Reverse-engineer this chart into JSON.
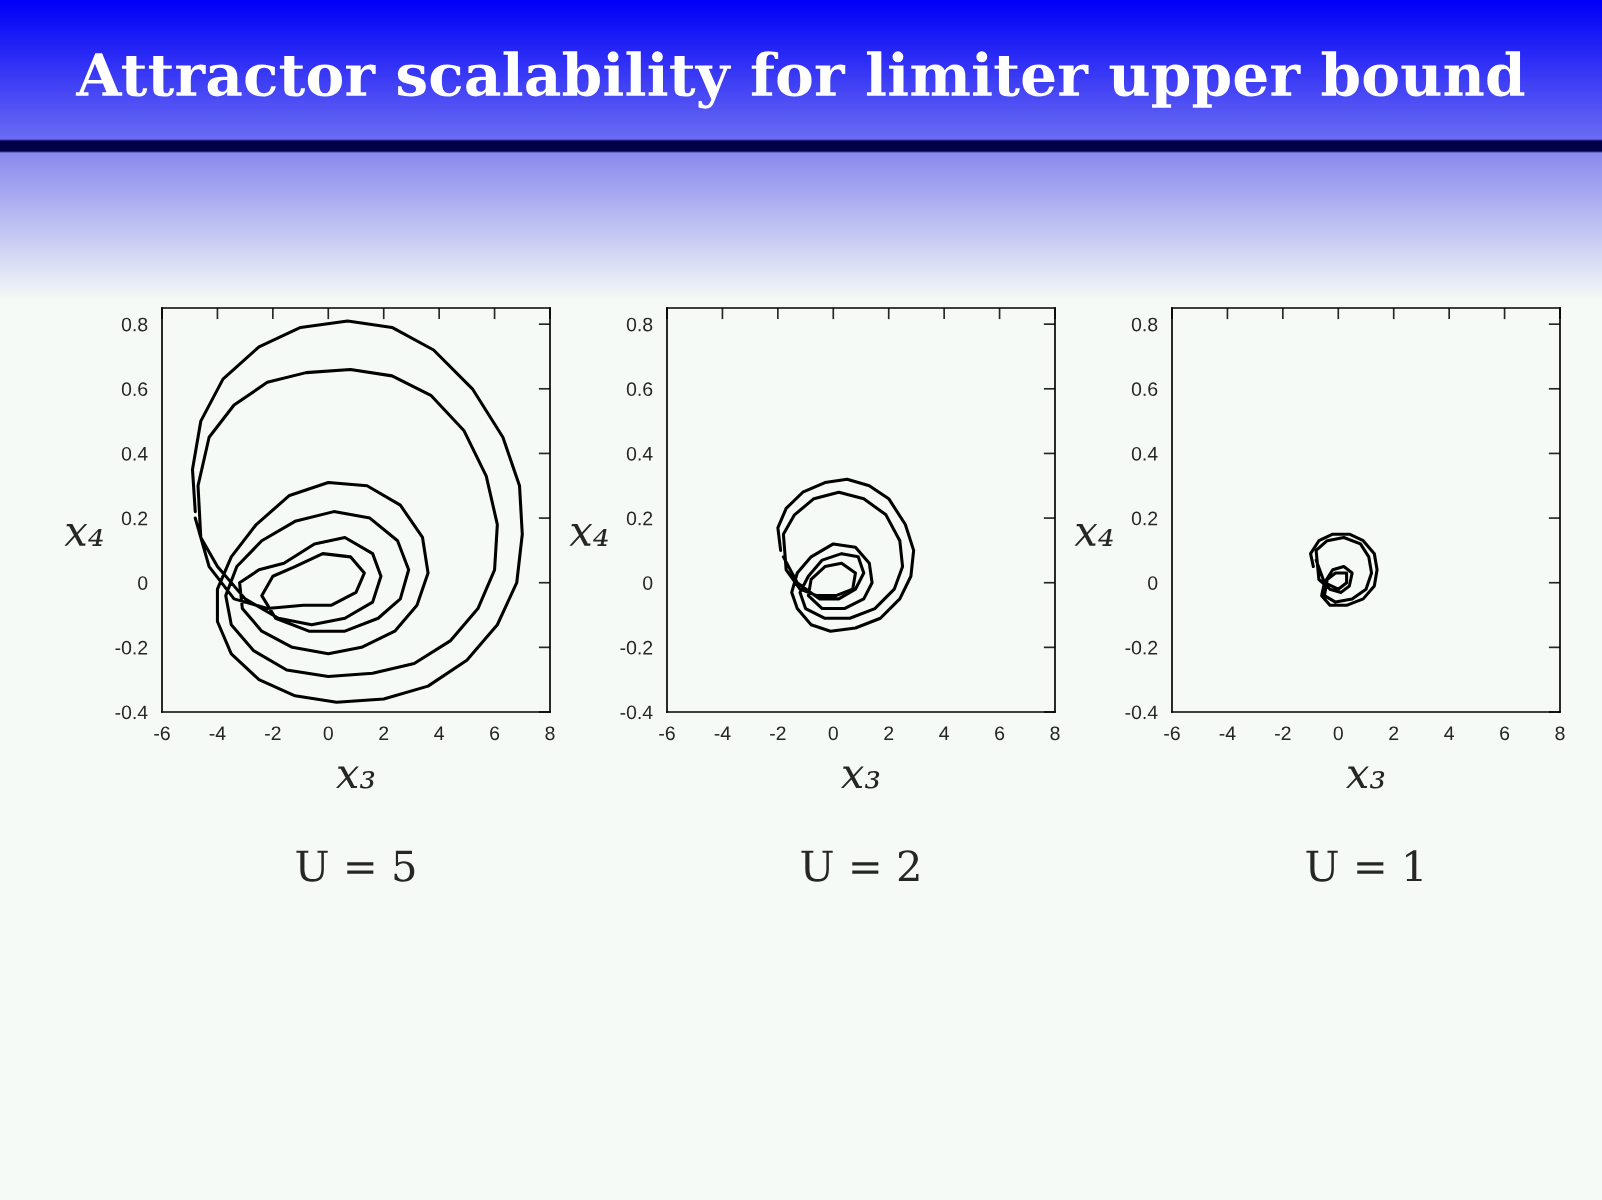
{
  "chart_data": [
    {
      "type": "line",
      "title": "Attractor scalability for limiter upper bound",
      "xlabel": "x₃",
      "ylabel": "x₄",
      "annotations": [
        "U = 5"
      ],
      "xlim": [
        -6,
        8
      ],
      "ylim": [
        -0.4,
        0.85
      ],
      "xticks": [
        -6,
        -4,
        -2,
        0,
        2,
        4,
        6,
        8
      ],
      "yticks": [
        -0.4,
        -0.2,
        0,
        0.2,
        0.4,
        0.6,
        0.8
      ],
      "series": [
        {
          "color": "#000000",
          "x": [
            -4.8,
            -4.9,
            -4.6,
            -3.8,
            -2.5,
            -1,
            0.7,
            2.3,
            3.8,
            5.2,
            6.3,
            6.9,
            7,
            6.8,
            6.1,
            5,
            3.6,
            2,
            0.3,
            -1.2,
            -2.5,
            -3.5,
            -4,
            -4,
            -3.5,
            -2.6,
            -1.4,
            0,
            1.4,
            2.6,
            3.4,
            3.6,
            3.2,
            2.4,
            1.2,
            0,
            -1.3,
            -2.4,
            -3.1,
            -3.2,
            -2.5,
            -1.6,
            -0.5,
            0.6,
            1.6,
            1.9,
            1.6,
            0.6,
            -0.6,
            -1.8,
            -3,
            -4,
            -4.6,
            -4.7,
            -4.3,
            -3.4,
            -2.2,
            -0.8,
            0.8,
            2.3,
            3.7,
            4.9,
            5.7,
            6.1,
            6,
            5.4,
            4.4,
            3.1,
            1.6,
            0,
            -1.5,
            -2.7,
            -3.5,
            -3.7,
            -3.3,
            -2.4,
            -1.2,
            0.2,
            1.5,
            2.5,
            2.9,
            2.6,
            1.8,
            0.6,
            -0.7,
            -1.9,
            -2.4,
            -2,
            -1.2,
            -0.2,
            0.8,
            1.3,
            1,
            0.1,
            -0.9,
            -2.2,
            -3.4,
            -4.3,
            -4.8
          ],
          "values": [
            0.22,
            0.35,
            0.5,
            0.63,
            0.73,
            0.79,
            0.81,
            0.79,
            0.72,
            0.6,
            0.45,
            0.3,
            0.15,
            0,
            -0.13,
            -0.24,
            -0.32,
            -0.36,
            -0.37,
            -0.35,
            -0.3,
            -0.22,
            -0.12,
            -0.02,
            0.08,
            0.18,
            0.27,
            0.31,
            0.3,
            0.24,
            0.14,
            0.03,
            -0.07,
            -0.15,
            -0.2,
            -0.22,
            -0.2,
            -0.15,
            -0.08,
            0,
            0.04,
            0.06,
            0.12,
            0.14,
            0.09,
            0.02,
            -0.06,
            -0.11,
            -0.13,
            -0.11,
            -0.05,
            0.05,
            0.14,
            0.3,
            0.45,
            0.55,
            0.62,
            0.65,
            0.66,
            0.64,
            0.58,
            0.47,
            0.33,
            0.18,
            0.04,
            -0.08,
            -0.18,
            -0.25,
            -0.28,
            -0.29,
            -0.27,
            -0.21,
            -0.13,
            -0.04,
            0.05,
            0.13,
            0.19,
            0.22,
            0.2,
            0.13,
            0.04,
            -0.05,
            -0.11,
            -0.15,
            -0.15,
            -0.11,
            -0.04,
            0.02,
            0.05,
            0.09,
            0.08,
            0.03,
            -0.03,
            -0.07,
            -0.07,
            -0.08,
            -0.05,
            0.05,
            0.2
          ]
        }
      ]
    },
    {
      "type": "line",
      "xlabel": "x₃",
      "ylabel": "x₄",
      "annotations": [
        "U = 2"
      ],
      "xlim": [
        -6,
        8
      ],
      "ylim": [
        -0.4,
        0.85
      ],
      "xticks": [
        -6,
        -4,
        -2,
        0,
        2,
        4,
        6,
        8
      ],
      "yticks": [
        -0.4,
        -0.2,
        0,
        0.2,
        0.4,
        0.6,
        0.8
      ],
      "series": [
        {
          "color": "#000000",
          "x": [
            -1.9,
            -2,
            -1.7,
            -1.1,
            -0.3,
            0.5,
            1.3,
            2,
            2.6,
            2.9,
            2.8,
            2.4,
            1.7,
            0.8,
            -0.1,
            -0.8,
            -1.3,
            -1.5,
            -1.3,
            -0.8,
            0,
            0.8,
            1.3,
            1.4,
            1.1,
            0.4,
            -0.4,
            -0.9,
            -0.8,
            -0.3,
            0.3,
            0.8,
            0.7,
            0.1,
            -0.6,
            -1.2,
            -1.7,
            -1.8,
            -1.4,
            -0.7,
            0.2,
            1.1,
            1.9,
            2.4,
            2.5,
            2.2,
            1.5,
            0.6,
            -0.3,
            -1,
            -1.2,
            -0.9,
            -0.4,
            0.3,
            0.9,
            1.1,
            0.8,
            0.2,
            -0.5,
            -1.3,
            -1.8
          ],
          "values": [
            0.1,
            0.17,
            0.23,
            0.28,
            0.31,
            0.32,
            0.3,
            0.26,
            0.18,
            0.1,
            0.02,
            -0.05,
            -0.11,
            -0.14,
            -0.15,
            -0.13,
            -0.08,
            -0.03,
            0.03,
            0.08,
            0.12,
            0.11,
            0.06,
            0,
            -0.05,
            -0.08,
            -0.08,
            -0.04,
            0.01,
            0.05,
            0.06,
            0.03,
            -0.02,
            -0.04,
            -0.04,
            -0.02,
            0.04,
            0.15,
            0.21,
            0.26,
            0.28,
            0.26,
            0.21,
            0.13,
            0.05,
            -0.02,
            -0.08,
            -0.11,
            -0.11,
            -0.08,
            -0.03,
            0.02,
            0.07,
            0.09,
            0.08,
            0.03,
            -0.02,
            -0.05,
            -0.05,
            0,
            0.08
          ]
        }
      ]
    },
    {
      "type": "line",
      "xlabel": "x₃",
      "ylabel": "x₄",
      "annotations": [
        "U = 1"
      ],
      "xlim": [
        -6,
        8
      ],
      "ylim": [
        -0.4,
        0.85
      ],
      "xticks": [
        -6,
        -4,
        -2,
        0,
        2,
        4,
        6,
        8
      ],
      "yticks": [
        -0.4,
        -0.2,
        0,
        0.2,
        0.4,
        0.6,
        0.8
      ],
      "series": [
        {
          "color": "#000000",
          "x": [
            -0.9,
            -1,
            -0.7,
            -0.2,
            0.4,
            0.9,
            1.3,
            1.4,
            1.3,
            0.9,
            0.3,
            -0.3,
            -0.6,
            -0.5,
            -0.2,
            0.2,
            0.5,
            0.4,
            0.1,
            -0.3,
            -0.7,
            -0.8,
            -0.4,
            0.2,
            0.8,
            1.1,
            1.2,
            1,
            0.5,
            -0.1,
            -0.5,
            -0.4,
            -0.1,
            0.3,
            0.3,
            0,
            -0.5,
            -0.8
          ],
          "values": [
            0.05,
            0.09,
            0.13,
            0.15,
            0.15,
            0.13,
            0.09,
            0.04,
            -0.01,
            -0.05,
            -0.07,
            -0.07,
            -0.04,
            0,
            0.04,
            0.05,
            0.03,
            -0.01,
            -0.03,
            -0.02,
            0.01,
            0.1,
            0.13,
            0.14,
            0.12,
            0.08,
            0.03,
            -0.02,
            -0.05,
            -0.06,
            -0.04,
            0.01,
            0.03,
            0.03,
            0,
            -0.02,
            0,
            0.07
          ]
        }
      ]
    }
  ]
}
